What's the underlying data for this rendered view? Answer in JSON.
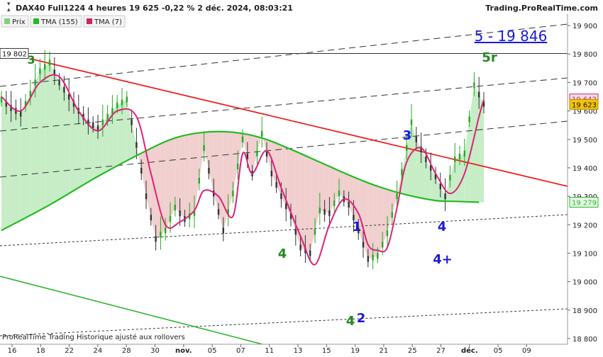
{
  "header": {
    "title": "DAX40 Full1224 4 heures 19 625 -0,22 % 2 déc. 2024, 08:03:21",
    "site": "Trading.ProRealTime.com"
  },
  "legend": [
    {
      "label": "Prix",
      "color": "#7fcf7f"
    },
    {
      "label": "TMA (155)",
      "color": "#22bb22"
    },
    {
      "label": "TMA (7)",
      "color": "#cc2266"
    }
  ],
  "footer_note": "ProRealTime Trading Historique ajusté aux rollovers",
  "annotations": {
    "target": "5 - 19 846",
    "wave_5r": "5r",
    "wave_3_green": "3",
    "wave_4_green": "4",
    "wave_4_bottom": "4",
    "wave_2": "2",
    "wave_1": "1",
    "wave_3_blue": "3",
    "wave_4_blue": "4",
    "wave_4_plus": "4+"
  },
  "colors": {
    "price_up": "#22aa22",
    "price_down": "#333333",
    "tma_fast": "#dd2277",
    "tma_slow": "#22bb22",
    "trendline": "#ee2222",
    "elliott_green": "#228822",
    "elliott_blue": "#1a1add"
  },
  "chart_data": {
    "type": "line",
    "instrument": "DAX40 Full1224",
    "timeframe": "4 heures",
    "x_tick_labels": [
      "16",
      "18",
      "22",
      "24",
      "28",
      "30",
      "nov.",
      "05",
      "07",
      "11",
      "13",
      "15",
      "19",
      "21",
      "25",
      "27",
      "déc.",
      "05",
      "09"
    ],
    "ylim": [
      18780,
      19940
    ],
    "y_ticks": [
      18800,
      18900,
      19000,
      19100,
      19200,
      19300,
      19400,
      19500,
      19600,
      19700,
      19800,
      19900
    ],
    "y_tick_labels": [
      "18 800",
      "18 900",
      "19 000",
      "19 100",
      "19 200",
      "19 300",
      "19 400",
      "19 500",
      "19 600",
      "19 700",
      "19 800",
      "19 900"
    ],
    "price_badges": [
      {
        "label": "19 802",
        "value": 19802
      },
      {
        "label": "19 642",
        "value": 19642
      },
      {
        "label": "19 623",
        "value": 19623
      },
      {
        "label": "19 279",
        "value": 19279
      }
    ],
    "horizontal_level": 19802,
    "series": [
      {
        "name": "Prix",
        "x": [
          0.0,
          1.0,
          2.0,
          3.0,
          4.0,
          5.0,
          6.0,
          7.0,
          8.0,
          9.0,
          10.0,
          11.0,
          12.0,
          13.0,
          14.0,
          15.0,
          16.0,
          17.0,
          18.0,
          19.0,
          20.0,
          21.0,
          22.0,
          23.0,
          24.0,
          25.0,
          26.0,
          27.0,
          28.0,
          29.0,
          30.0,
          31.0,
          32.0,
          33.0,
          34.0,
          35.0,
          36.0,
          37.0,
          38.0,
          39.0,
          40.0,
          41.0,
          42.0,
          42.5,
          43.0,
          44.0,
          45.0,
          46.0,
          47.0,
          48.0,
          49.0,
          50.0
        ],
        "values": [
          19640,
          19610,
          19590,
          19660,
          19740,
          19770,
          19700,
          19650,
          19600,
          19560,
          19540,
          19580,
          19620,
          19640,
          19480,
          19300,
          19150,
          19180,
          19260,
          19220,
          19240,
          19470,
          19310,
          19180,
          19310,
          19500,
          19380,
          19520,
          19380,
          19300,
          19230,
          19120,
          19100,
          19250,
          19240,
          19310,
          19270,
          19180,
          19080,
          19090,
          19170,
          19300,
          19470,
          19560,
          19500,
          19430,
          19370,
          19300,
          19430,
          19450,
          19690,
          19625
        ]
      },
      {
        "name": "TMA (155)",
        "x": [
          0.0,
          5.0,
          10.0,
          15.0,
          18.0,
          21.0,
          24.0,
          27.0,
          30.0,
          33.0,
          36.0,
          39.0,
          42.0,
          45.0,
          47.0,
          49.5
        ],
        "values": [
          19180,
          19270,
          19370,
          19460,
          19505,
          19525,
          19525,
          19505,
          19465,
          19420,
          19375,
          19335,
          19305,
          19285,
          19282,
          19279
        ]
      },
      {
        "name": "TMA (7)",
        "x": [
          0.0,
          2.0,
          4.0,
          6.0,
          8.0,
          10.0,
          12.0,
          14.0,
          15.5,
          17.0,
          18.5,
          20.0,
          21.0,
          22.5,
          24.0,
          25.0,
          26.0,
          27.5,
          29.0,
          31.0,
          32.5,
          34.0,
          35.5,
          37.0,
          38.0,
          39.0,
          40.0,
          41.0,
          42.0,
          43.5,
          45.0,
          46.5,
          48.0,
          49.5,
          50.0
        ],
        "values": [
          19650,
          19600,
          19700,
          19720,
          19600,
          19530,
          19600,
          19580,
          19380,
          19200,
          19210,
          19250,
          19320,
          19300,
          19230,
          19450,
          19380,
          19460,
          19330,
          19160,
          19060,
          19200,
          19290,
          19240,
          19130,
          19110,
          19120,
          19260,
          19420,
          19470,
          19380,
          19310,
          19380,
          19580,
          19640
        ]
      }
    ]
  }
}
